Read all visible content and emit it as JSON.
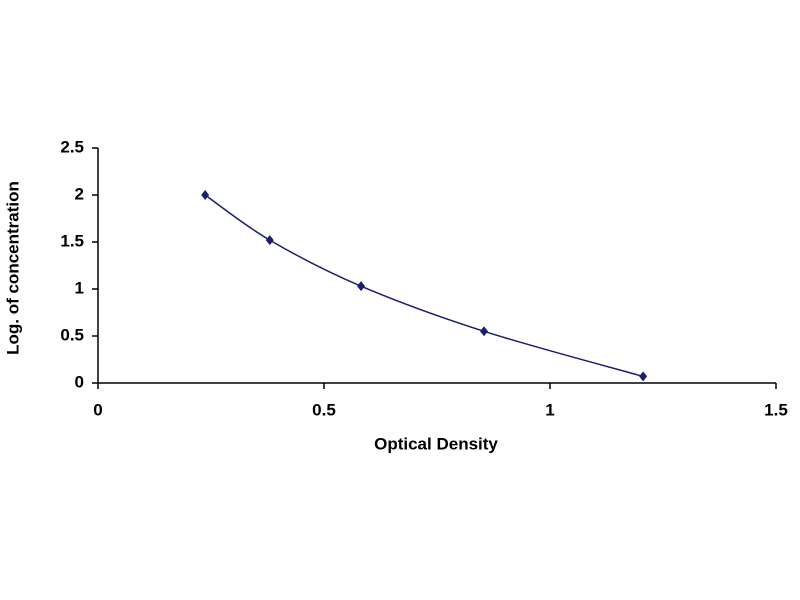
{
  "chart_data": {
    "type": "scatter",
    "x_label": "Optical Density",
    "y_label": "Log. of concentration",
    "x": [
      0.237,
      0.38,
      0.582,
      0.854,
      1.206
    ],
    "values": [
      2,
      1.52,
      1.03,
      0.55,
      0.07
    ],
    "color": "#1b1f6e",
    "smooth": true,
    "xlim": [
      0,
      1.5
    ],
    "xticks": [
      0,
      0.5,
      1,
      1.5
    ],
    "ylim": [
      0,
      2.5
    ],
    "yticks": [
      0,
      0.5,
      1,
      1.5,
      2,
      2.5
    ],
    "grid": false
  }
}
